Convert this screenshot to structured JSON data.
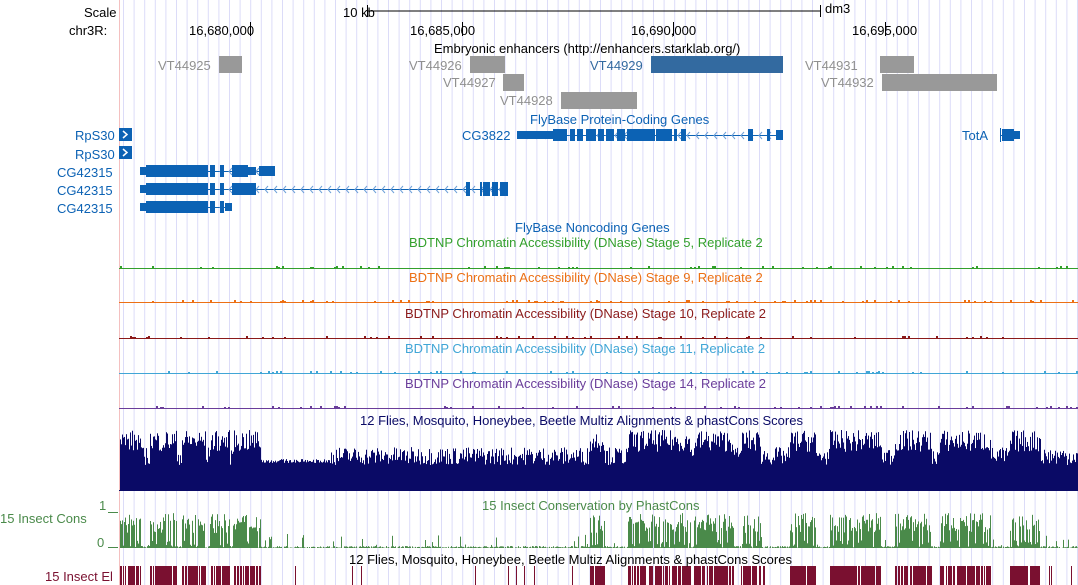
{
  "ruler": {
    "scale_label": "Scale",
    "chrom_label": "chr3R:",
    "scale_bar": "10 kb",
    "assembly": "dm3",
    "ticks": [
      "16,680,000",
      "16,685,000",
      "16,690,000",
      "16,695,000"
    ]
  },
  "enhancers": {
    "title": "Embryonic enhancers (http://enhancers.starklab.org/)",
    "items": [
      "VT44925",
      "VT44926",
      "VT44927",
      "VT44928",
      "VT44929",
      "VT44931",
      "VT44932"
    ],
    "color": "#999999",
    "highlight_color": "#336aa0"
  },
  "genes": {
    "title": "FlyBase Protein-Coding Genes",
    "left_labels": [
      "RpS30",
      "RpS30",
      "CG42315",
      "CG42315",
      "CG42315"
    ],
    "cg3822": "CG3822",
    "tota": "TotA",
    "color": "#0c62b4"
  },
  "noncoding": {
    "title": "FlyBase Noncoding Genes"
  },
  "dnase": [
    {
      "title": "BDTNP Chromatin Accessibility (DNase) Stage 5, Replicate 2",
      "color": "#33a02c"
    },
    {
      "title": "BDTNP Chromatin Accessibility (DNase) Stage 9, Replicate 2",
      "color": "#ec7014"
    },
    {
      "title": "BDTNP Chromatin Accessibility (DNase) Stage 10, Replicate 2",
      "color": "#8b1a1a"
    },
    {
      "title": "BDTNP Chromatin Accessibility (DNase) Stage 11, Replicate 2",
      "color": "#41a6d6"
    },
    {
      "title": "BDTNP Chromatin Accessibility (DNase) Stage 14, Replicate 2",
      "color": "#6a3d9a"
    }
  ],
  "multiz": {
    "title": "12 Flies, Mosquito, Honeybee, Beetle Multiz Alignments & phastCons Scores",
    "color": "#0a0a66"
  },
  "cons": {
    "label": "15 Insect Cons",
    "title": "15 Insect Conservation by PhastCons",
    "y_max": "1",
    "y_min": "0",
    "color": "#4a8a4a"
  },
  "elements": {
    "label": "15 Insect El",
    "title": "12 Flies, Mosquito, Honeybee, Beetle Multiz Alignments & phastCons Scores",
    "color": "#7a1030"
  }
}
